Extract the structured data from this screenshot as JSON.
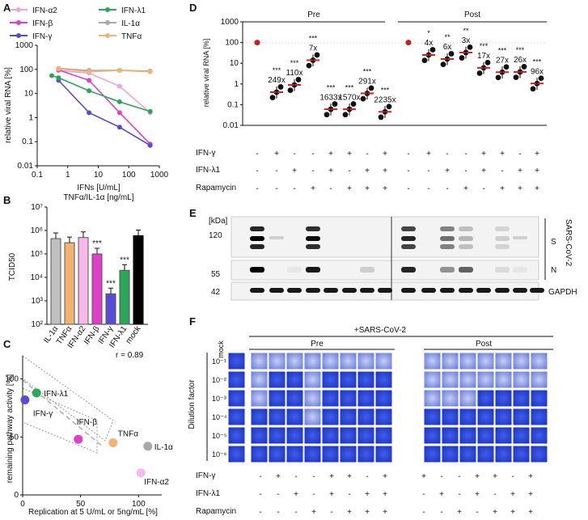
{
  "panels": {
    "A": "A",
    "B": "B",
    "C": "C",
    "D": "D",
    "E": "E",
    "F": "F"
  },
  "panelA": {
    "legend": [
      {
        "name": "IFN-α2",
        "color": "#f2a3d8"
      },
      {
        "name": "IFN-λ1",
        "color": "#2aa85a"
      },
      {
        "name": "IFN-β",
        "color": "#e040c8"
      },
      {
        "name": "IL-1α",
        "color": "#a8a8a8"
      },
      {
        "name": "IFN-γ",
        "color": "#5b4ad8"
      },
      {
        "name": "TNFα",
        "color": "#f2b470"
      }
    ],
    "ylabel": "relative viral RNA [%]",
    "xlabel1": "IFNs [U/mL]",
    "xlabel2": "TNFα/IL-1α [ng/mL]",
    "yticks": [
      "1000",
      "100",
      "10",
      "1",
      "0.1",
      "0.01"
    ],
    "xticks": [
      "0.1",
      "1",
      "10",
      "100",
      "1000"
    ]
  },
  "chart_data": [
    {
      "type": "line",
      "title": "A",
      "xlabel": "IFNs [U/mL] / TNFα/IL-1α [ng/mL]",
      "ylabel": "relative viral RNA [%]",
      "xscale": "log",
      "yscale": "log",
      "xlim": [
        0.1,
        1000
      ],
      "ylim": [
        0.01,
        1000
      ],
      "series": [
        {
          "name": "IFN-α2",
          "x": [
            0.5,
            5,
            50,
            500
          ],
          "y": [
            90,
            70,
            20,
            1.6
          ]
        },
        {
          "name": "IFN-β",
          "x": [
            0.5,
            5,
            50,
            500
          ],
          "y": [
            95,
            35,
            1.6,
            0.08
          ]
        },
        {
          "name": "IFN-γ",
          "x": [
            0.5,
            5,
            50,
            500
          ],
          "y": [
            35,
            1.6,
            0.4,
            0.07
          ]
        },
        {
          "name": "IFN-λ1",
          "x": [
            0.3,
            0.5,
            5,
            50,
            500
          ],
          "y": [
            55,
            45,
            13,
            4.5,
            1.8
          ]
        },
        {
          "name": "IL-1α",
          "x": [
            0.5,
            5,
            50,
            500
          ],
          "y": [
            110,
            90,
            92,
            85
          ]
        },
        {
          "name": "TNFα",
          "x": [
            0.5,
            5,
            50,
            500
          ],
          "y": [
            105,
            80,
            90,
            80
          ]
        }
      ]
    },
    {
      "type": "bar",
      "title": "B",
      "ylabel": "TCID50",
      "yscale": "log",
      "ylim": [
        100,
        10000000
      ],
      "categories": [
        "IL-1α",
        "TNFα",
        "IFN-α2",
        "IFN-β",
        "IFN-γ",
        "IFN-λ1",
        "mock"
      ],
      "values": [
        450000,
        300000,
        500000,
        100000,
        2000,
        20000,
        600000
      ],
      "significance": [
        "",
        "",
        "",
        "***",
        "***",
        "***",
        ""
      ]
    },
    {
      "type": "scatter",
      "title": "C",
      "xlabel": "Replication at 5 U/mL or 5ng/mL [%]",
      "ylabel": "remaining pathway activity [%]",
      "xlim": [
        0,
        120
      ],
      "ylim": [
        0,
        120
      ],
      "annotation": "r = 0.89",
      "points": [
        {
          "label": "IFN-λ1",
          "x": 12,
          "y": 88
        },
        {
          "label": "IFN-γ",
          "x": 2,
          "y": 82
        },
        {
          "label": "IFN-β",
          "x": 48,
          "y": 48
        },
        {
          "label": "TNFα",
          "x": 78,
          "y": 45
        },
        {
          "label": "IL-1α",
          "x": 108,
          "y": 42
        },
        {
          "label": "IFN-α2",
          "x": 102,
          "y": 19
        }
      ]
    },
    {
      "type": "scatter",
      "title": "D",
      "ylabel": "relative viral RNA [%]",
      "yscale": "log",
      "ylim": [
        0.01,
        1000
      ],
      "groups": [
        "Pre",
        "Post"
      ],
      "conditions": [
        {
          "group": "Pre",
          "mean": 100,
          "fold": "",
          "sig": ""
        },
        {
          "group": "Pre",
          "mean": 0.4,
          "fold": "249x",
          "sig": "***"
        },
        {
          "group": "Pre",
          "mean": 0.9,
          "fold": "110x",
          "sig": "***"
        },
        {
          "group": "Pre",
          "mean": 14,
          "fold": "7x",
          "sig": "***"
        },
        {
          "group": "Pre",
          "mean": 0.06,
          "fold": "1633x",
          "sig": "***"
        },
        {
          "group": "Pre",
          "mean": 0.06,
          "fold": "1570x",
          "sig": "***"
        },
        {
          "group": "Pre",
          "mean": 0.35,
          "fold": "291x",
          "sig": "***"
        },
        {
          "group": "Pre",
          "mean": 0.045,
          "fold": "2235x",
          "sig": "***"
        },
        {
          "group": "Post",
          "mean": 100,
          "fold": "",
          "sig": ""
        },
        {
          "group": "Post",
          "mean": 25,
          "fold": "4x",
          "sig": "*"
        },
        {
          "group": "Post",
          "mean": 16,
          "fold": "6x",
          "sig": "**"
        },
        {
          "group": "Post",
          "mean": 33,
          "fold": "3x",
          "sig": "**"
        },
        {
          "group": "Post",
          "mean": 6,
          "fold": "17x",
          "sig": "***"
        },
        {
          "group": "Post",
          "mean": 3.7,
          "fold": "27x",
          "sig": "***"
        },
        {
          "group": "Post",
          "mean": 3.8,
          "fold": "26x",
          "sig": "***"
        },
        {
          "group": "Post",
          "mean": 1.05,
          "fold": "96x",
          "sig": "***"
        }
      ]
    }
  ],
  "panelB": {
    "ylabel": "TCID50",
    "yticks": [
      "10⁷",
      "10⁶",
      "10⁵",
      "10⁴",
      "10³",
      "10²"
    ]
  },
  "panelC": {
    "r": "r = 0.89",
    "ylabel": "remaining pathway activity [%]",
    "xlabel": "Replication at 5 U/mL or 5ng/mL [%]",
    "yticks": [
      "100",
      "50",
      "0"
    ],
    "xticks": [
      "0",
      "50",
      "100"
    ]
  },
  "panelD": {
    "groups": [
      "Pre",
      "Post"
    ],
    "ylabel": "relative viral RNA [%]",
    "yticks": [
      "1000",
      "100",
      "10",
      "1",
      "0.1",
      "0.01"
    ],
    "rowLabels": [
      "IFN-γ",
      "IFN-λ1",
      "Rapamycin"
    ],
    "matrix": [
      [
        "-",
        "+",
        "-",
        "-",
        "+",
        "+",
        "-",
        "+"
      ],
      [
        "-",
        "-",
        "+",
        "-",
        "+",
        "-",
        "+",
        "+"
      ],
      [
        "-",
        "-",
        "-",
        "+",
        "-",
        "+",
        "+",
        "+"
      ]
    ]
  },
  "panelE": {
    "kda": "[kDa]",
    "markers": [
      "120",
      "55",
      "42"
    ],
    "bands": [
      "S",
      "N",
      "GAPDH"
    ],
    "virus": "SARS-CoV-2"
  },
  "panelF": {
    "title": "+SARS-CoV-2",
    "mock": "mock",
    "groups": [
      "Pre",
      "Post"
    ],
    "dilutionLabel": "Dilution factor",
    "dilutions": [
      "10⁻¹",
      "10⁻²",
      "10⁻³",
      "10⁻⁴",
      "10⁻⁵",
      "10⁻⁶"
    ],
    "rowLabels": [
      "IFN-γ",
      "IFN-λ1",
      "Rapamycin"
    ],
    "matrix": [
      [
        "-",
        "+",
        "-",
        "-",
        "+",
        "+",
        "-",
        "+"
      ],
      [
        "-",
        "-",
        "+",
        "-",
        "+",
        "-",
        "+",
        "+"
      ],
      [
        "-",
        "-",
        "-",
        "+",
        "-",
        "+",
        "+",
        "+"
      ]
    ]
  }
}
